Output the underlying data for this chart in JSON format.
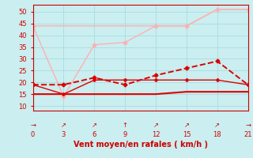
{
  "xlabel": "Vent moyen/en rafales ( km/h )",
  "bg_color": "#cbeef0",
  "grid_color": "#a8dde0",
  "x": [
    0,
    3,
    6,
    9,
    12,
    15,
    18,
    21
  ],
  "line1_y": [
    44,
    44,
    44,
    44,
    44,
    44,
    51,
    51
  ],
  "line1_color": "#ffb0b0",
  "line1_lw": 1.0,
  "line2_y": [
    44,
    14,
    36,
    37,
    44,
    44,
    51,
    51
  ],
  "line2_color": "#ffb0b0",
  "line2_lw": 1.0,
  "line2_marker": "D",
  "line2_ms": 2.5,
  "line3_y": [
    19,
    19,
    22,
    19,
    23,
    26,
    29,
    19
  ],
  "line3_color": "#dd0000",
  "line3_lw": 1.4,
  "line3_ls": "--",
  "line3_marker": "D",
  "line3_ms": 2.5,
  "line4_y": [
    19,
    15,
    21,
    21,
    21,
    21,
    21,
    19
  ],
  "line4_color": "#dd0000",
  "line4_lw": 1.0,
  "line4_marker": "D",
  "line4_ms": 2.0,
  "line5_y": [
    15,
    15,
    15,
    15,
    15,
    16,
    16,
    16
  ],
  "line5_color": "#dd0000",
  "line5_lw": 1.5,
  "xlim": [
    0,
    21
  ],
  "ylim": [
    8,
    53
  ],
  "yticks": [
    10,
    15,
    20,
    25,
    30,
    35,
    40,
    45,
    50
  ],
  "xticks": [
    0,
    3,
    6,
    9,
    12,
    15,
    18,
    21
  ],
  "arrow_labels": [
    "→",
    "↗",
    "↗",
    "↑",
    "↗",
    "↗",
    "↗",
    "→"
  ],
  "axis_color": "#cc0000",
  "tick_color": "#cc0000",
  "label_color": "#cc0000",
  "label_fontsize": 7.0,
  "tick_fontsize": 6.0
}
